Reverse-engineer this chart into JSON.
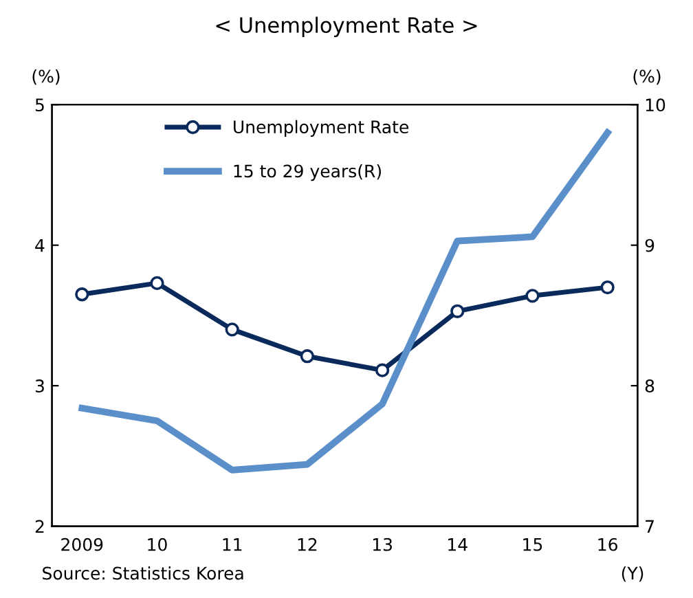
{
  "chart_data": {
    "type": "line",
    "title": "< Unemployment Rate >",
    "ylabel": "(%)",
    "y2label": "(%)",
    "categories": [
      "2009",
      "10",
      "11",
      "12",
      "13",
      "14",
      "15",
      "16"
    ],
    "series": [
      {
        "name": "Unemployment Rate",
        "color": "#0b2a5c",
        "values": [
          3.65,
          3.73,
          3.4,
          3.21,
          3.11,
          3.53,
          3.64,
          3.7
        ],
        "marker": "circle"
      },
      {
        "name": "15 to 29 years(R)",
        "color": "#5b8fc9",
        "axis": "y2",
        "values": [
          7.84,
          7.75,
          7.4,
          7.44,
          7.87,
          9.03,
          9.06,
          9.8
        ],
        "marker": "none"
      }
    ],
    "ylim": [
      2,
      5
    ],
    "yticks": [
      2,
      3,
      4,
      5
    ],
    "y2lim": [
      7,
      10
    ],
    "y2ticks": [
      7,
      8,
      9,
      10
    ],
    "grid": false,
    "legend": "top left",
    "annotations": [
      "Source: Statistics Korea",
      "(Y)"
    ]
  }
}
